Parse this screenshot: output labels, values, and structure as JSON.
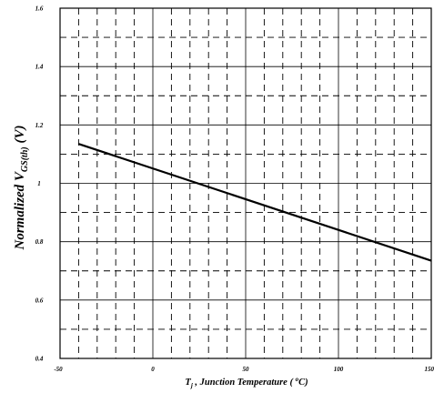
{
  "chart_data": {
    "type": "line",
    "title": "",
    "xlabel": {
      "prefix": "T",
      "subscript": "j",
      "text": " , Junction Temperature ( ",
      "superscript": "o",
      "suffix": "C)"
    },
    "ylabel": {
      "prefix": "Normalized  V",
      "subscript": "GS(th)",
      "suffix": " (V)"
    },
    "xlim": [
      -50,
      150
    ],
    "ylim": [
      0.4,
      1.6
    ],
    "x_ticks": [
      "-50",
      "0",
      "50",
      "100",
      "150"
    ],
    "y_ticks": [
      "0.4",
      "0.6",
      "0.8",
      "1",
      "1.2",
      "1.4",
      "1.6"
    ],
    "grid": "solid major lines with dashed minor lines",
    "series": [
      {
        "x": [
          -40,
          150
        ],
        "y": [
          1.135,
          0.735
        ]
      }
    ]
  }
}
